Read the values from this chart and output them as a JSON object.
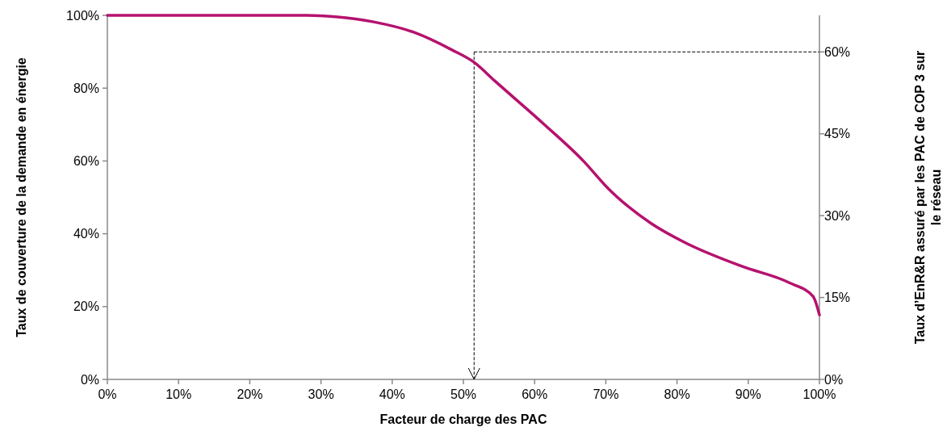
{
  "chart_data": {
    "type": "line",
    "xlabel": "Facteur de charge des PAC",
    "ylabel": "Taux de couverture de la demande en énergie",
    "y2label": "Taux d’EnR&R assuré par les PAC de COP 3 sur\nle réseau",
    "x": [
      0,
      10,
      20,
      28,
      32,
      37.4,
      43.1,
      48.4,
      51.5,
      54.4,
      61.2,
      66.9,
      70.3,
      76.4,
      81,
      89.2,
      95.7,
      99.1,
      100
    ],
    "series": [
      {
        "color": "#b5126e",
        "values": [
          100,
          100,
          100,
          100,
          99.6,
          98.2,
          95.3,
          90.5,
          87.1,
          82,
          70.3,
          59.9,
          52.5,
          42.8,
          37.7,
          31,
          26.6,
          22.8,
          17.7
        ]
      }
    ],
    "xlim": [
      0,
      100
    ],
    "xticks": [
      {
        "value": 0,
        "label": "0%"
      },
      {
        "value": 10,
        "label": "10%"
      },
      {
        "value": 20,
        "label": "20%"
      },
      {
        "value": 30,
        "label": "30%"
      },
      {
        "value": 40,
        "label": "40%"
      },
      {
        "value": 50,
        "label": "50%"
      },
      {
        "value": 60,
        "label": "60%"
      },
      {
        "value": 70,
        "label": "70%"
      },
      {
        "value": 80,
        "label": "80%"
      },
      {
        "value": 90,
        "label": "90%"
      },
      {
        "value": 100,
        "label": "100%"
      }
    ],
    "ylim": [
      0,
      100
    ],
    "yticks": [
      {
        "value": 0,
        "label": "0%"
      },
      {
        "value": 20,
        "label": "20%"
      },
      {
        "value": 40,
        "label": "40%"
      },
      {
        "value": 60,
        "label": "60%"
      },
      {
        "value": 80,
        "label": "80%"
      },
      {
        "value": 100,
        "label": "100%"
      }
    ],
    "y2lim": [
      0,
      66.7
    ],
    "y2ticks": [
      {
        "value": 0,
        "label": "0%"
      },
      {
        "value": 15,
        "label": "15%"
      },
      {
        "value": 30,
        "label": "30%"
      },
      {
        "value": 45,
        "label": "45%"
      },
      {
        "value": 60,
        "label": "60%"
      }
    ],
    "ref_lines": [
      {
        "axis": "x",
        "value": 51.5,
        "line_style": "dashed"
      },
      {
        "axis": "y2",
        "value": 60,
        "line_style": "dashed"
      }
    ],
    "grid": false,
    "marker": "none",
    "line_style": "solid"
  }
}
